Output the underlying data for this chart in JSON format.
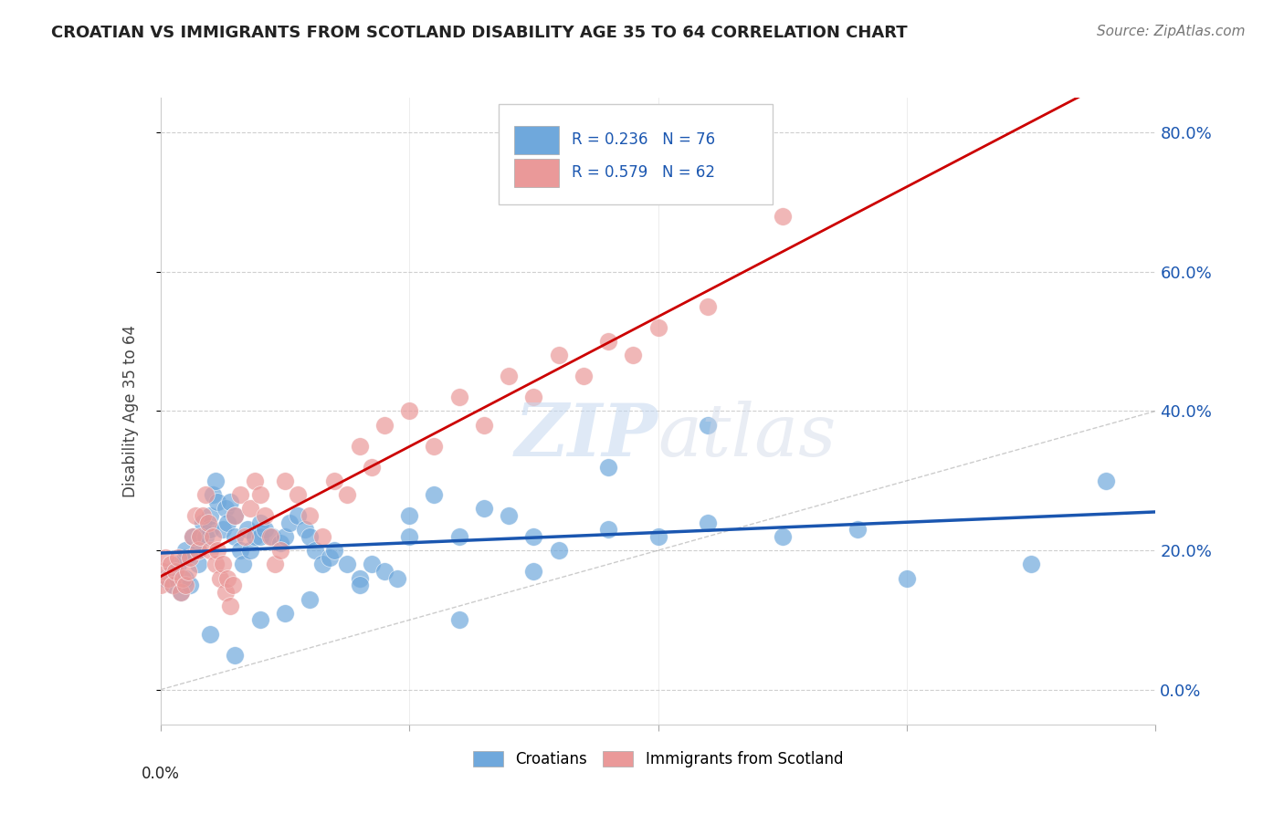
{
  "title": "CROATIAN VS IMMIGRANTS FROM SCOTLAND DISABILITY AGE 35 TO 64 CORRELATION CHART",
  "source": "Source: ZipAtlas.com",
  "ylabel_labels": [
    "0.0%",
    "20.0%",
    "40.0%",
    "60.0%",
    "80.0%"
  ],
  "ylabel_values": [
    0.0,
    0.2,
    0.4,
    0.6,
    0.8
  ],
  "xmin": 0.0,
  "xmax": 0.4,
  "ymin": -0.05,
  "ymax": 0.85,
  "legend_blue_r": "R = 0.236",
  "legend_blue_n": "N = 76",
  "legend_pink_r": "R = 0.579",
  "legend_pink_n": "N = 62",
  "blue_color": "#6fa8dc",
  "pink_color": "#ea9999",
  "blue_line_color": "#1a56b0",
  "pink_line_color": "#cc0000",
  "watermark_zip": "ZIP",
  "watermark_atlas": "atlas",
  "croatians_x": [
    0.002,
    0.005,
    0.005,
    0.007,
    0.008,
    0.01,
    0.01,
    0.01,
    0.012,
    0.013,
    0.015,
    0.015,
    0.016,
    0.017,
    0.018,
    0.02,
    0.02,
    0.021,
    0.022,
    0.023,
    0.025,
    0.026,
    0.027,
    0.028,
    0.03,
    0.03,
    0.032,
    0.033,
    0.035,
    0.036,
    0.038,
    0.04,
    0.04,
    0.042,
    0.045,
    0.048,
    0.05,
    0.052,
    0.055,
    0.058,
    0.06,
    0.062,
    0.065,
    0.068,
    0.07,
    0.075,
    0.08,
    0.085,
    0.09,
    0.095,
    0.1,
    0.11,
    0.12,
    0.13,
    0.14,
    0.15,
    0.16,
    0.18,
    0.2,
    0.22,
    0.25,
    0.28,
    0.3,
    0.35,
    0.38,
    0.22,
    0.18,
    0.15,
    0.12,
    0.1,
    0.08,
    0.06,
    0.05,
    0.04,
    0.03,
    0.02
  ],
  "croatians_y": [
    0.16,
    0.15,
    0.17,
    0.18,
    0.14,
    0.16,
    0.19,
    0.2,
    0.15,
    0.22,
    0.18,
    0.2,
    0.22,
    0.24,
    0.22,
    0.25,
    0.23,
    0.28,
    0.3,
    0.27,
    0.23,
    0.26,
    0.24,
    0.27,
    0.25,
    0.22,
    0.2,
    0.18,
    0.23,
    0.2,
    0.22,
    0.24,
    0.22,
    0.23,
    0.22,
    0.21,
    0.22,
    0.24,
    0.25,
    0.23,
    0.22,
    0.2,
    0.18,
    0.19,
    0.2,
    0.18,
    0.16,
    0.18,
    0.17,
    0.16,
    0.25,
    0.28,
    0.22,
    0.26,
    0.25,
    0.22,
    0.2,
    0.23,
    0.22,
    0.24,
    0.22,
    0.23,
    0.16,
    0.18,
    0.3,
    0.38,
    0.32,
    0.17,
    0.1,
    0.22,
    0.15,
    0.13,
    0.11,
    0.1,
    0.05,
    0.08
  ],
  "scotland_x": [
    0.0,
    0.001,
    0.002,
    0.003,
    0.004,
    0.005,
    0.006,
    0.007,
    0.008,
    0.009,
    0.01,
    0.011,
    0.012,
    0.013,
    0.014,
    0.015,
    0.016,
    0.017,
    0.018,
    0.019,
    0.02,
    0.021,
    0.022,
    0.023,
    0.024,
    0.025,
    0.026,
    0.027,
    0.028,
    0.029,
    0.03,
    0.032,
    0.034,
    0.036,
    0.038,
    0.04,
    0.042,
    0.044,
    0.046,
    0.048,
    0.05,
    0.055,
    0.06,
    0.065,
    0.07,
    0.075,
    0.08,
    0.085,
    0.09,
    0.1,
    0.11,
    0.12,
    0.13,
    0.14,
    0.15,
    0.16,
    0.17,
    0.18,
    0.19,
    0.2,
    0.22,
    0.25
  ],
  "scotland_y": [
    0.15,
    0.17,
    0.19,
    0.16,
    0.18,
    0.15,
    0.17,
    0.19,
    0.14,
    0.16,
    0.15,
    0.17,
    0.19,
    0.22,
    0.25,
    0.2,
    0.22,
    0.25,
    0.28,
    0.24,
    0.2,
    0.22,
    0.18,
    0.2,
    0.16,
    0.18,
    0.14,
    0.16,
    0.12,
    0.15,
    0.25,
    0.28,
    0.22,
    0.26,
    0.3,
    0.28,
    0.25,
    0.22,
    0.18,
    0.2,
    0.3,
    0.28,
    0.25,
    0.22,
    0.3,
    0.28,
    0.35,
    0.32,
    0.38,
    0.4,
    0.35,
    0.42,
    0.38,
    0.45,
    0.42,
    0.48,
    0.45,
    0.5,
    0.48,
    0.52,
    0.55,
    0.68
  ]
}
